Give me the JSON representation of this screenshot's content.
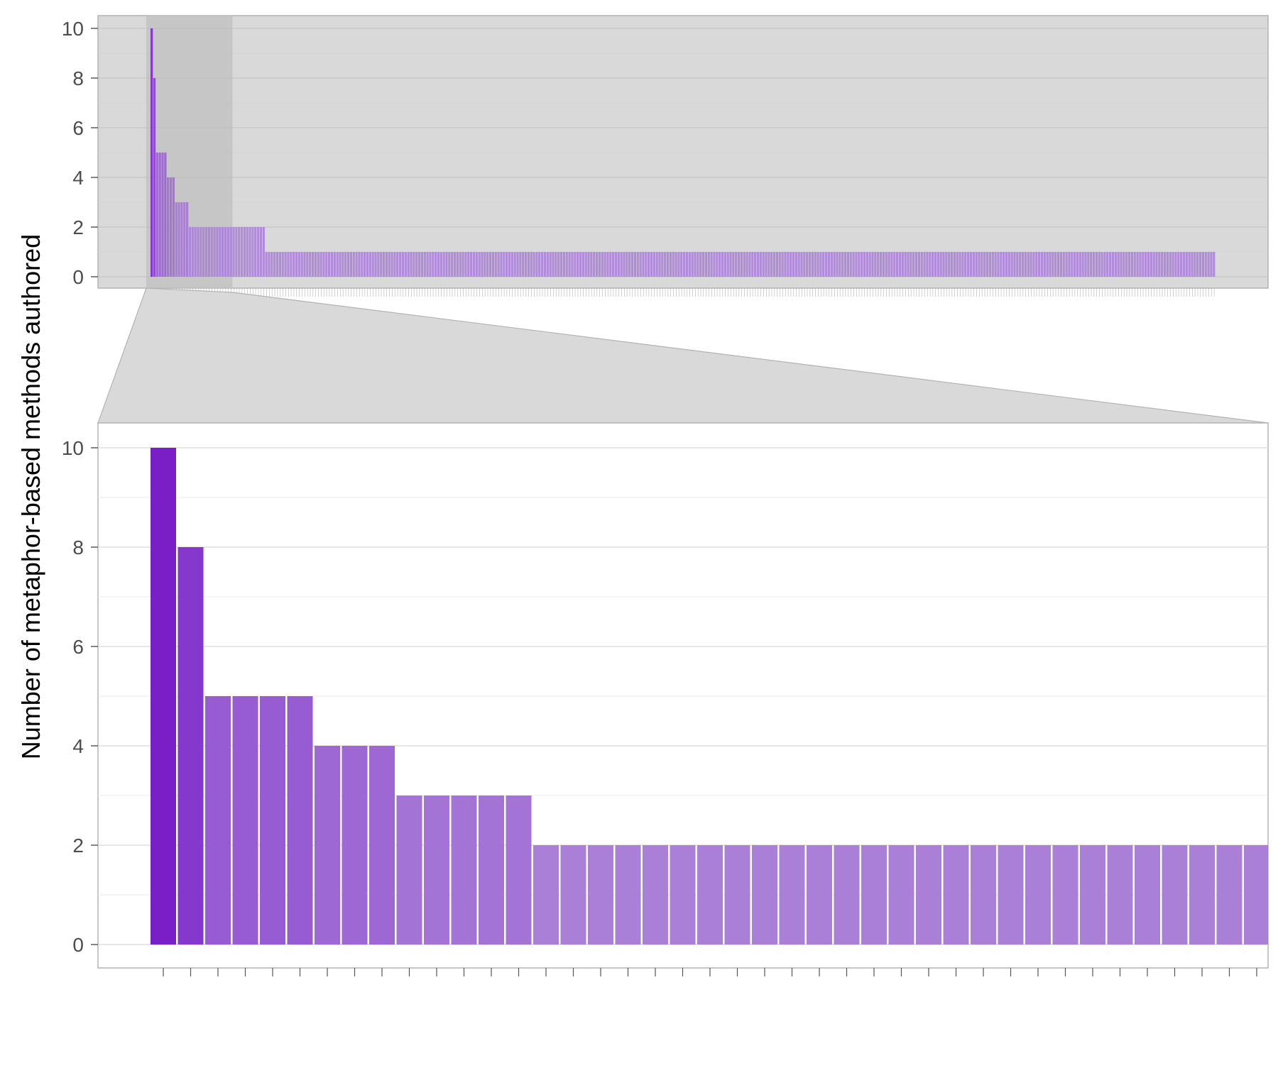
{
  "chart_data": {
    "type": "bar",
    "ylabel": "Number of metaphor-based methods authored",
    "overview": {
      "type": "bar",
      "n_bars": 390,
      "values_prefix": [
        10,
        8,
        5,
        5,
        5,
        5,
        4,
        4,
        4,
        3,
        3,
        3,
        3,
        3,
        2,
        2,
        2,
        2,
        2,
        2,
        2,
        2,
        2,
        2,
        2,
        2,
        2,
        2,
        2,
        2,
        2,
        2,
        2,
        2,
        2,
        2,
        2,
        2,
        2,
        2,
        2,
        2
      ],
      "remaining_value": 1,
      "ylim": [
        0,
        10
      ],
      "yticks": [
        "0",
        "2",
        "4",
        "6",
        "8",
        "10"
      ],
      "highlight_range": [
        1,
        30
      ]
    },
    "zoom": {
      "type": "bar",
      "values": [
        10,
        8,
        5,
        5,
        5,
        5,
        4,
        4,
        4,
        3,
        3,
        3,
        3,
        3,
        2,
        2,
        2,
        2,
        2,
        2,
        2,
        2,
        2,
        2,
        2,
        2,
        2,
        2,
        2,
        2,
        2,
        2,
        2,
        2,
        2,
        2,
        2,
        2,
        2,
        2,
        2
      ],
      "ylim": [
        0,
        10
      ],
      "yticks": [
        "0",
        "2",
        "4",
        "6",
        "8",
        "10"
      ],
      "grid": true
    },
    "colors": {
      "bar_high": "#7a1fc8",
      "bar_low": "#a97fd8",
      "panel_background_overview": "#d9d9d9",
      "grid": "#d9d9d9",
      "frame": "#b3b3b3"
    }
  }
}
